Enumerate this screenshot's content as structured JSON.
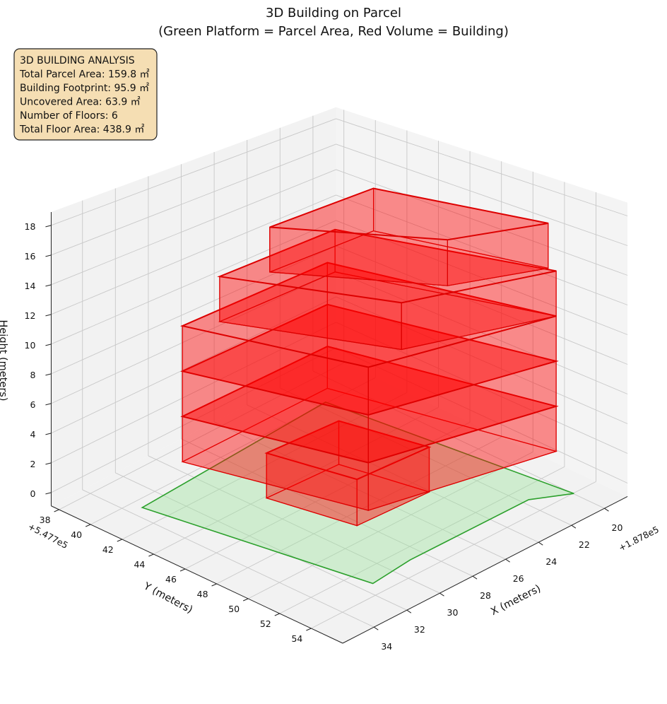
{
  "chart_data": {
    "type": "3d-surface",
    "title": "3D Building on Parcel",
    "subtitle": "(Green Platform = Parcel Area, Red Volume = Building)",
    "xlabel": "X (meters)",
    "ylabel": "Y (meters)",
    "zlabel": "Height (meters)",
    "x_offset_text": "+1.878e5",
    "y_offset_text": "+5.477e5",
    "xlim": [
      18.6,
      35.9
    ],
    "ylim": [
      37.5,
      56
    ],
    "zlim": [
      -0.9,
      18.9
    ],
    "x_ticks": [
      "20",
      "22",
      "24",
      "26",
      "28",
      "30",
      "32",
      "34"
    ],
    "y_ticks": [
      "38",
      "40",
      "42",
      "44",
      "46",
      "48",
      "50",
      "52",
      "54"
    ],
    "z_ticks": [
      "0",
      "2",
      "4",
      "6",
      "8",
      "10",
      "12",
      "14",
      "16",
      "18"
    ],
    "grid": true,
    "colors": {
      "parcel_fill": "#9be39b",
      "parcel_edge": "#2ca02c",
      "building_fill": "#ff0000",
      "building_edge": "#dd0000",
      "pane": "#f2f2f2",
      "annotation_bg": "#f5deb3"
    },
    "parcel": [
      [
        34.2,
        41.5
      ],
      [
        22.3,
        40.7
      ],
      [
        20.8,
        54.9
      ],
      [
        22.5,
        53.8
      ],
      [
        29.7,
        53.8
      ],
      [
        32.25,
        54.1
      ]
    ],
    "floors": [
      {
        "z0": 0,
        "z1": 3,
        "footprint": [
          [
            30,
            45
          ],
          [
            25.8,
            45.2
          ],
          [
            24.9,
            50
          ],
          [
            29.1,
            49.8
          ]
        ]
      },
      {
        "z0": 3,
        "z1": 6,
        "footprint": [
          [
            33,
            42.8
          ],
          [
            24,
            42.6
          ],
          [
            21.5,
            54.5
          ],
          [
            30.8,
            52.3
          ]
        ]
      },
      {
        "z0": 6,
        "z1": 9,
        "footprint": [
          [
            33,
            42.8
          ],
          [
            24,
            42.6
          ],
          [
            21.5,
            54.5
          ],
          [
            30.8,
            52.3
          ]
        ]
      },
      {
        "z0": 9,
        "z1": 12,
        "footprint": [
          [
            33,
            42.8
          ],
          [
            24,
            42.6
          ],
          [
            21.5,
            54.5
          ],
          [
            30.8,
            52.3
          ]
        ]
      },
      {
        "z0": 12,
        "z1": 15,
        "footprint": [
          [
            31.6,
            43.7
          ],
          [
            24.5,
            43.6
          ],
          [
            21.5,
            54.5
          ],
          [
            28.5,
            52
          ]
        ]
      },
      {
        "z0": 15,
        "z1": 18,
        "footprint": [
          [
            29.8,
            45
          ],
          [
            23.5,
            45
          ],
          [
            21.5,
            54
          ],
          [
            25.8,
            52.1
          ]
        ]
      }
    ],
    "annotation": {
      "lines": [
        "3D BUILDING ANALYSIS",
        "Total Parcel Area: 159.8 ㎡",
        "Building Footprint: 95.9 ㎡",
        "Uncovered Area: 63.9 ㎡",
        "Number of Floors: 6",
        "Total Floor Area: 438.9 ㎡"
      ],
      "placement": "top-left"
    }
  }
}
